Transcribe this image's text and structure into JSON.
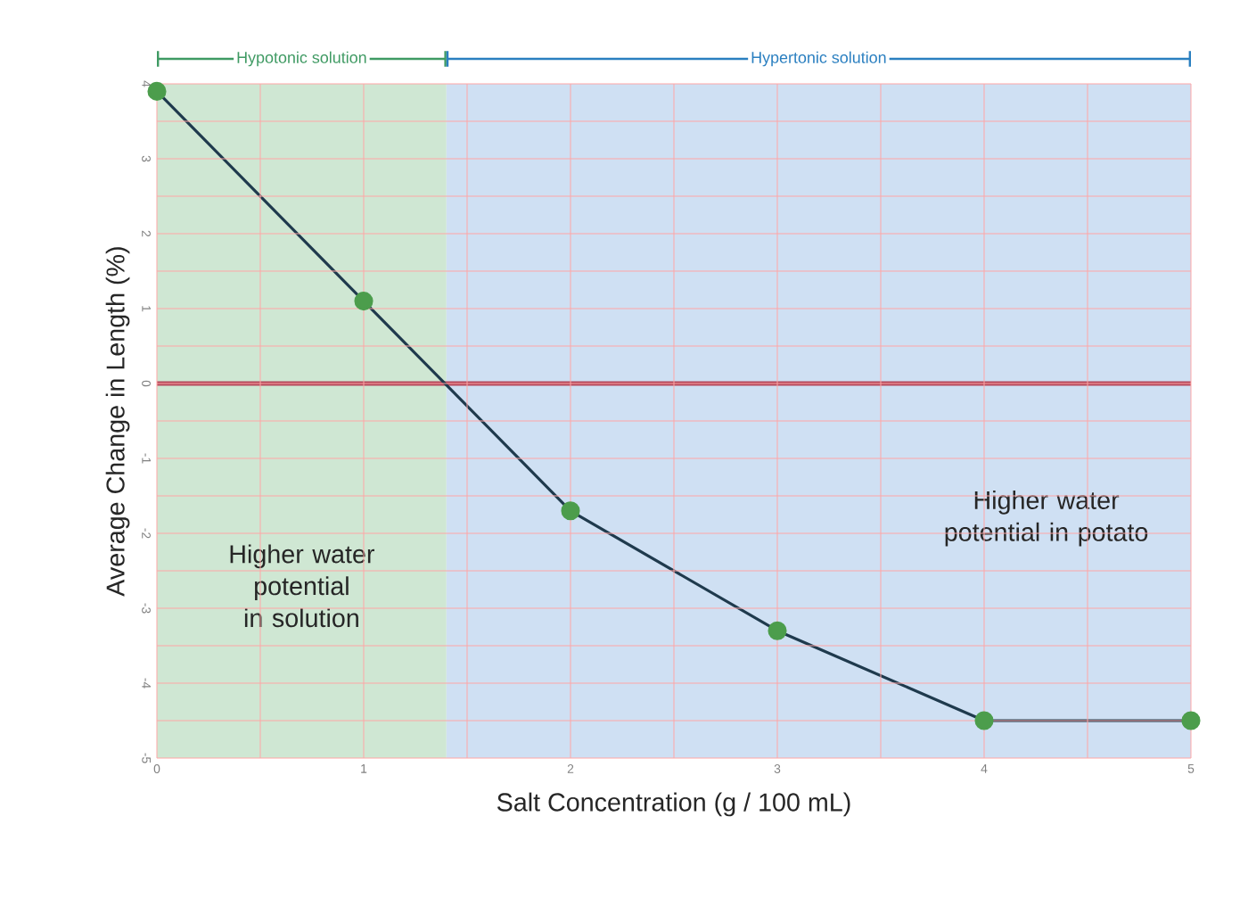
{
  "chart_data": {
    "type": "line",
    "xlabel": "Salt Concentration (g / 100 mL)",
    "ylabel": "Average Change in Length (%)",
    "x": [
      0,
      1,
      2,
      3,
      4,
      5
    ],
    "series": [
      {
        "color": "#1f3a4d",
        "values": [
          3.9,
          1.1,
          -1.7,
          -3.3,
          -4.5,
          -4.5
        ]
      }
    ],
    "marker": "circle",
    "line_style": "solid",
    "grid": true,
    "xlim": [
      0,
      5
    ],
    "ylim": [
      -5,
      4
    ],
    "xticks": [
      0,
      1,
      2,
      3,
      4,
      5
    ],
    "yticks": [
      -5,
      -4,
      -3,
      -2,
      -1,
      0,
      1,
      2,
      3,
      4
    ],
    "ref_lines": [
      {
        "axis": "y",
        "value": 0,
        "color": "#b5475a"
      }
    ],
    "bands": [
      {
        "axis": "x",
        "from": 0,
        "to": 1.4,
        "label": "Hypotonic solution",
        "color": "#cfe7d3"
      },
      {
        "axis": "x",
        "from": 1.4,
        "to": 5,
        "label": "Hypertonic solution",
        "color": "#cfe0f3"
      }
    ],
    "annotations": [
      "Higher water potential in solution",
      "Higher water potential in potato"
    ]
  }
}
